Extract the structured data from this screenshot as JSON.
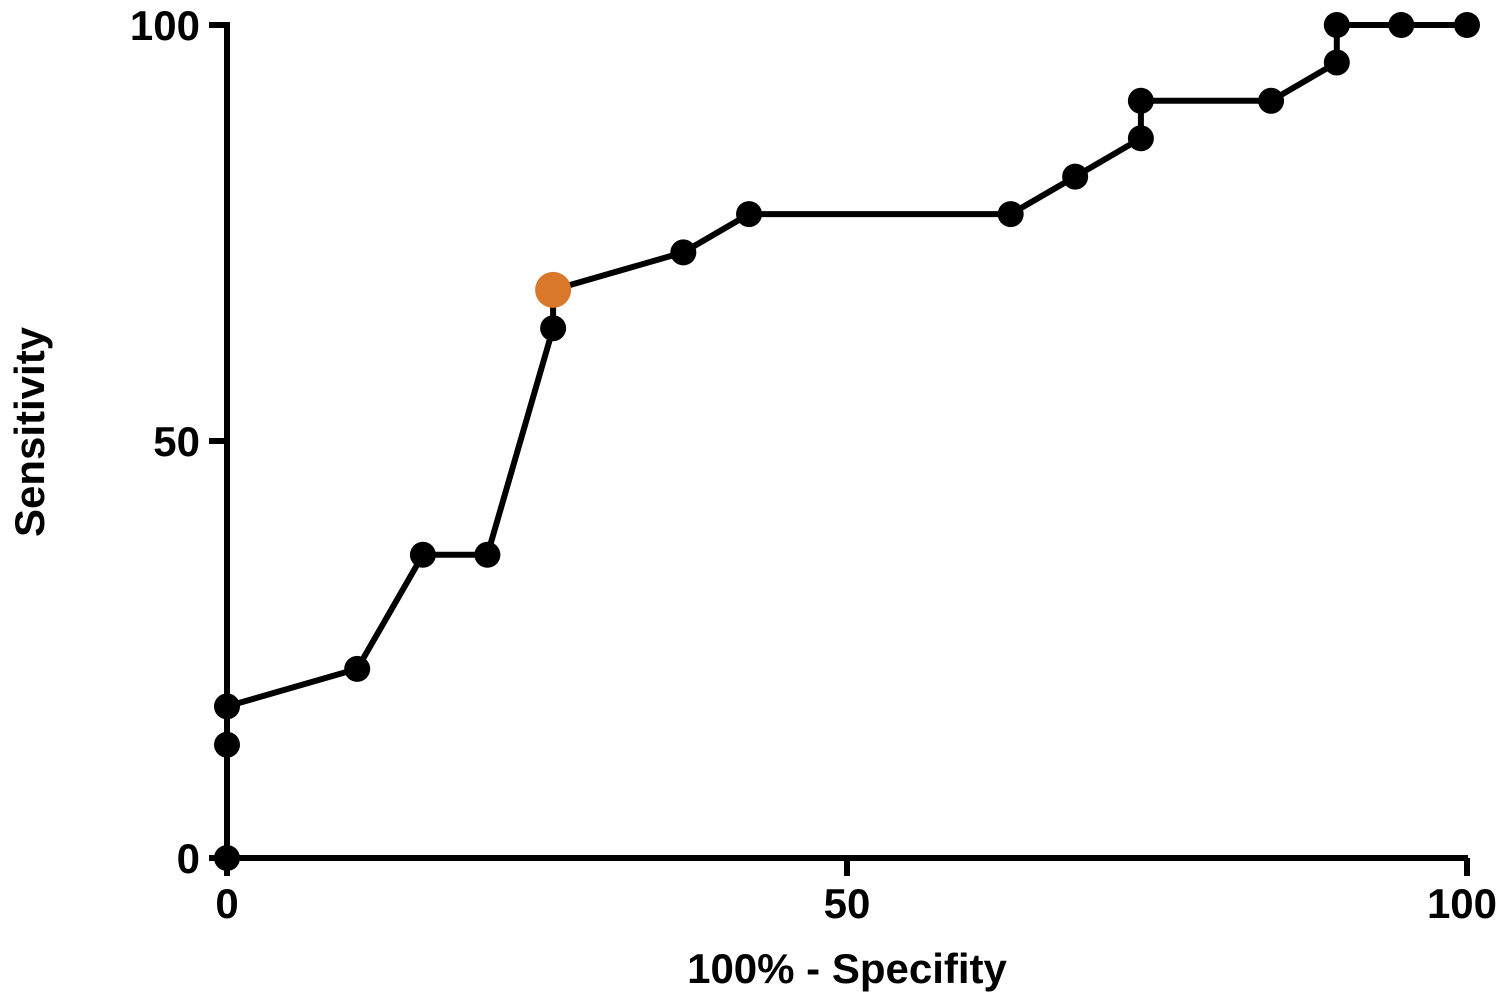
{
  "chart_data": {
    "type": "line",
    "xlabel": "100% - Specifity",
    "ylabel": "Sensitivity",
    "xlim": [
      0,
      100
    ],
    "ylim": [
      0,
      100
    ],
    "x_ticks": [
      "0",
      "50",
      "100"
    ],
    "y_ticks": [
      "0",
      "50",
      "100"
    ],
    "grid": false,
    "series": [
      {
        "color": "#000000",
        "x": [
          0,
          0,
          0,
          10.5,
          15.8,
          21.0,
          26.3,
          26.3,
          36.8,
          42.1,
          63.2,
          68.4,
          73.7,
          73.7,
          84.2,
          89.5,
          89.5,
          94.7,
          100
        ],
        "y": [
          0,
          13.6,
          18.2,
          22.7,
          36.4,
          36.4,
          63.6,
          68.2,
          72.7,
          77.3,
          77.3,
          81.8,
          86.4,
          90.9,
          90.9,
          95.5,
          100,
          100,
          100
        ]
      }
    ],
    "highlight": {
      "x": 26.3,
      "y": 68.2,
      "color": "#D9772B"
    }
  }
}
